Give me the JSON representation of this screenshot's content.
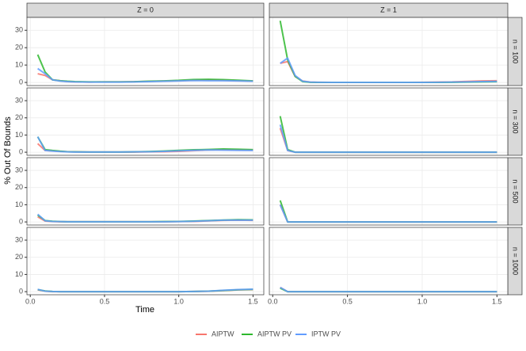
{
  "chart_data": {
    "type": "line",
    "xlabel": "Time",
    "ylabel": "% Out Of Bounds",
    "facets_x": [
      "Z = 0",
      "Z = 1"
    ],
    "facets_y": [
      "n = 100",
      "n = 300",
      "n = 500",
      "n = 1000"
    ],
    "x": [
      0.05,
      0.1,
      0.15,
      0.2,
      0.25,
      0.3,
      0.4,
      0.5,
      0.6,
      0.7,
      0.8,
      0.9,
      1.0,
      1.1,
      1.2,
      1.3,
      1.4,
      1.5
    ],
    "xlim": [
      -0.0225,
      1.5725
    ],
    "xticks": [
      {
        "value": 0,
        "label": "0.0"
      },
      0.5,
      {
        "value": 1,
        "label": "1.0"
      },
      1.5
    ],
    "ylim": [
      -1.8,
      37.4
    ],
    "yticks": [
      0,
      10,
      20,
      30
    ],
    "grid": true,
    "legend": "bottom",
    "series": [
      {
        "name": "AIPTW",
        "color": "#f8766d"
      },
      {
        "name": "AIPTW PV",
        "color": "#2eb82e"
      },
      {
        "name": "IPTW PV",
        "color": "#619cff"
      }
    ],
    "panels": [
      {
        "values": [
          [
            5,
            4,
            1.5,
            1,
            0.5,
            0.3,
            0.2,
            0.3,
            0.3,
            0.4,
            0.6,
            0.8,
            1,
            1.3,
            1.5,
            1.3,
            1,
            0.8
          ],
          [
            16,
            6,
            1.5,
            1,
            0.7,
            0.5,
            0.3,
            0.3,
            0.3,
            0.4,
            0.7,
            0.9,
            1.2,
            1.7,
            1.8,
            1.6,
            1.3,
            0.9
          ],
          [
            8,
            5,
            1.5,
            0.8,
            0.5,
            0.3,
            0.2,
            0.2,
            0.2,
            0.3,
            0.5,
            0.7,
            0.9,
            1.1,
            1,
            1,
            0.9,
            0.7
          ]
        ]
      },
      {
        "values": [
          [
            11,
            12,
            3.5,
            0.8,
            0.2,
            0.1,
            0,
            0,
            0,
            0,
            0,
            0,
            0.1,
            0.2,
            0.3,
            0.6,
            0.9,
            1
          ],
          [
            35.5,
            13,
            3.5,
            0.5,
            0.1,
            0,
            0,
            0,
            0,
            0,
            0,
            0,
            0,
            0,
            0.1,
            0.2,
            0.3,
            0.4
          ],
          [
            11,
            14,
            4,
            0.7,
            0.2,
            0.1,
            0,
            0,
            0,
            0,
            0,
            0,
            0,
            0.1,
            0.2,
            0.3,
            0.5,
            0.6
          ]
        ]
      },
      {
        "values": [
          [
            5,
            1,
            0.8,
            0.5,
            0.3,
            0.2,
            0.1,
            0.1,
            0.1,
            0.1,
            0.2,
            0.3,
            0.5,
            0.9,
            1.3,
            1.5,
            1.3,
            1.2
          ],
          [
            9,
            1.5,
            1,
            0.6,
            0.3,
            0.2,
            0.1,
            0.1,
            0.1,
            0.2,
            0.4,
            0.7,
            1.1,
            1.4,
            1.6,
            1.9,
            1.7,
            1.5
          ],
          [
            9,
            1,
            0.7,
            0.4,
            0.2,
            0.1,
            0.1,
            0.1,
            0.1,
            0.2,
            0.3,
            0.5,
            0.8,
            1.1,
            1.3,
            1.2,
            1.1,
            1
          ]
        ]
      },
      {
        "values": [
          [
            14,
            1,
            0,
            0,
            0,
            0,
            0,
            0,
            0,
            0,
            0,
            0,
            0,
            0,
            0,
            0,
            0,
            0
          ],
          [
            21,
            1.5,
            0,
            0,
            0,
            0,
            0,
            0,
            0,
            0,
            0,
            0,
            0,
            0,
            0,
            0,
            0,
            0
          ],
          [
            16,
            1,
            0,
            0,
            0,
            0,
            0,
            0,
            0,
            0,
            0,
            0,
            0,
            0,
            0,
            0,
            0,
            0
          ]
        ]
      },
      {
        "values": [
          [
            3,
            0.5,
            0.2,
            0.1,
            0.1,
            0.1,
            0.1,
            0.1,
            0.1,
            0.1,
            0.1,
            0.1,
            0.2,
            0.3,
            0.6,
            0.9,
            1,
            0.9
          ],
          [
            4,
            0.8,
            0.4,
            0.2,
            0.1,
            0.1,
            0.1,
            0.1,
            0.1,
            0.1,
            0.1,
            0.2,
            0.3,
            0.5,
            0.8,
            1.1,
            1.3,
            1.2
          ],
          [
            4.5,
            0.7,
            0.3,
            0.2,
            0.1,
            0.1,
            0.1,
            0.1,
            0.1,
            0.1,
            0.1,
            0.1,
            0.2,
            0.4,
            0.7,
            1,
            1.1,
            1
          ]
        ]
      },
      {
        "values": [
          [
            10,
            0,
            0,
            0,
            0,
            0,
            0,
            0,
            0,
            0,
            0,
            0,
            0,
            0,
            0,
            0,
            0,
            0
          ],
          [
            12.5,
            0,
            0,
            0,
            0,
            0,
            0,
            0,
            0,
            0,
            0,
            0,
            0,
            0,
            0,
            0,
            0,
            0
          ],
          [
            10,
            0,
            0,
            0,
            0,
            0,
            0,
            0,
            0,
            0,
            0,
            0,
            0,
            0,
            0,
            0,
            0,
            0
          ]
        ]
      },
      {
        "values": [
          [
            1,
            0.3,
            0,
            0,
            0,
            0,
            0,
            0,
            0,
            0,
            0,
            0,
            0,
            0.1,
            0.2,
            0.6,
            1,
            1.2
          ],
          [
            1.2,
            0.4,
            0.1,
            0,
            0,
            0,
            0,
            0,
            0,
            0,
            0,
            0,
            0,
            0.1,
            0.3,
            0.7,
            1.1,
            1.3
          ],
          [
            1.3,
            0.3,
            0.1,
            0,
            0,
            0,
            0,
            0,
            0,
            0,
            0,
            0,
            0,
            0.1,
            0.3,
            0.8,
            1.2,
            1.4
          ]
        ]
      },
      {
        "values": [
          [
            2.5,
            0,
            0,
            0,
            0,
            0,
            0,
            0,
            0,
            0,
            0,
            0,
            0,
            0,
            0,
            0,
            0,
            0
          ],
          [
            2,
            0,
            0,
            0,
            0,
            0,
            0,
            0,
            0,
            0,
            0,
            0,
            0,
            0,
            0,
            0,
            0,
            0
          ],
          [
            2.5,
            0,
            0,
            0,
            0,
            0,
            0,
            0,
            0,
            0,
            0,
            0,
            0,
            0,
            0,
            0,
            0,
            0
          ]
        ]
      }
    ]
  }
}
